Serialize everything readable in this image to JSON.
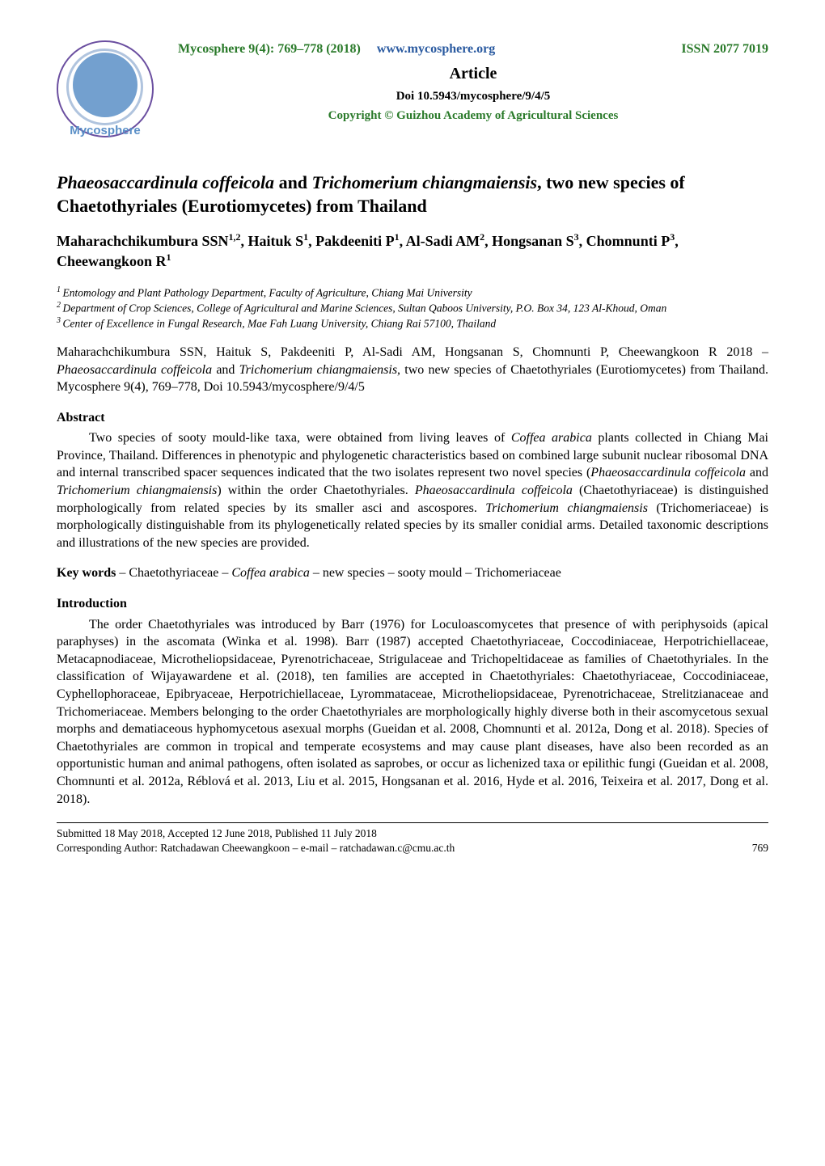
{
  "header": {
    "journal_issue": "Mycosphere 9(4): 769–778 (2018)",
    "url": "www.mycosphere.org",
    "issn": "ISSN 2077 7019",
    "article_label": "Article",
    "doi": "Doi 10.5943/mycosphere/9/4/5",
    "copyright": "Copyright © Guizhou Academy of Agricultural Sciences",
    "logo_text": "Mycosphere",
    "colors": {
      "green": "#2a7a2a",
      "blue_link": "#2a5aa0",
      "logo_border": "#6b4fa0",
      "logo_inner": "#5a8fc7"
    }
  },
  "title": {
    "italic1": "Phaeosaccardinula coffeicola",
    "mid1": " and ",
    "italic2": "Trichomerium chiangmaiensis",
    "rest": ", two new species of Chaetothyriales (Eurotiomycetes) from Thailand"
  },
  "authors_line": "Maharachchikumbura SSN1,2, Haituk S1, Pakdeeniti P1, Al-Sadi AM2, Hongsanan S3, Chomnunti P3, Cheewangkoon R1",
  "authors_parts": [
    {
      "name": "Maharachchikumbura SSN",
      "sup": "1,2"
    },
    {
      "sep": ", "
    },
    {
      "name": "Haituk S",
      "sup": "1"
    },
    {
      "sep": ", "
    },
    {
      "name": "Pakdeeniti P",
      "sup": "1"
    },
    {
      "sep": ", "
    },
    {
      "name": "Al-Sadi AM",
      "sup": "2"
    },
    {
      "sep": ", "
    },
    {
      "name": "Hongsanan S",
      "sup": "3"
    },
    {
      "sep": ", "
    },
    {
      "name": "Chomnunti P",
      "sup": "3"
    },
    {
      "sep": ", "
    },
    {
      "name": "Cheewangkoon R",
      "sup": "1"
    }
  ],
  "affiliations": [
    {
      "sup": "1",
      "text": "Entomology and Plant Pathology Department, Faculty of Agriculture, Chiang Mai University"
    },
    {
      "sup": "2",
      "text": "Department of Crop Sciences, College of Agricultural and Marine Sciences, Sultan Qaboos University, P.O. Box 34, 123 Al-Khoud, Oman"
    },
    {
      "sup": "3",
      "text": "Center of Excellence in Fungal Research, Mae Fah Luang University, Chiang Rai 57100, Thailand"
    }
  ],
  "citation": {
    "pre": "Maharachchikumbura SSN, Haituk S, Pakdeeniti P, Al-Sadi AM, Hongsanan S, Chomnunti P, Cheewangkoon R 2018 – ",
    "i1": "Phaeosaccardinula coffeicola",
    "mid": " and ",
    "i2": "Trichomerium chiangmaiensis",
    "post": ", two new species of Chaetothyriales (Eurotiomycetes) from Thailand. Mycosphere 9(4), 769–778, Doi 10.5943/mycosphere/9/4/5"
  },
  "abstract": {
    "heading": "Abstract",
    "t1": "Two species of sooty mould-like taxa, were obtained from living leaves of ",
    "i1": "Coffea arabica",
    "t2": " plants collected in Chiang Mai Province, Thailand. Differences in phenotypic and phylogenetic characteristics based on combined large subunit nuclear ribosomal DNA and internal transcribed spacer sequences indicated that the two isolates represent two novel species (",
    "i2": "Phaeosaccardinula coffeicola",
    "t3": " and ",
    "i3": "Trichomerium chiangmaiensis",
    "t4": ") within the order Chaetothyriales. ",
    "i4": "Phaeosaccardinula coffeicola",
    "t5": " (Chaetothyriaceae) is distinguished morphologically from related species by its smaller asci and ascospores. ",
    "i5": "Trichomerium chiangmaiensis",
    "t6": " (Trichomeriaceae) is morphologically distinguishable from its phylogenetically related species by its smaller conidial arms. Detailed taxonomic descriptions and illustrations of the new species are provided."
  },
  "keywords": {
    "label": "Key words",
    "t1": " – Chaetothyriaceae – ",
    "i1": "Coffea arabica",
    "t2": " – new species – sooty mould – Trichomeriaceae"
  },
  "introduction": {
    "heading": "Introduction",
    "body": "The order Chaetothyriales was introduced by Barr (1976) for Loculoascomycetes that presence of with periphysoids (apical paraphyses) in the ascomata (Winka et al. 1998). Barr (1987) accepted Chaetothyriaceae, Coccodiniaceae, Herpotrichiellaceae, Metacapnodiaceae, Microtheliopsidaceae, Pyrenotrichaceae, Strigulaceae and Trichopeltidaceae as families of Chaetothyriales. In the classification of Wijayawardene et al. (2018), ten families are accepted in Chaetothyriales: Chaetothyriaceae, Coccodiniaceae, Cyphellophoraceae, Epibryaceae, Herpotrichiellaceae, Lyrommataceae, Microtheliopsidaceae, Pyrenotrichaceae, Strelitzianaceae and Trichomeriaceae. Members belonging to the order Chaetothyriales are morphologically highly diverse both in their ascomycetous sexual morphs and dematiaceous hyphomycetous asexual morphs (Gueidan et al. 2008, Chomnunti et al. 2012a, Dong et al. 2018). Species of Chaetothyriales are common in tropical and temperate ecosystems and may cause plant diseases, have also been recorded as an opportunistic human and animal pathogens, often isolated as saprobes, or occur as lichenized taxa or epilithic fungi (Gueidan et al. 2008, Chomnunti et al. 2012a, Réblová et al. 2013, Liu et al. 2015, Hongsanan et al. 2016, Hyde et al. 2016, Teixeira et al. 2017, Dong et al. 2018)."
  },
  "footer": {
    "line1": "Submitted 18 May 2018, Accepted 12 June 2018, Published 11 July 2018",
    "line2": "Corresponding Author: Ratchadawan Cheewangkoon – e-mail – ratchadawan.c@cmu.ac.th",
    "page": "769"
  }
}
